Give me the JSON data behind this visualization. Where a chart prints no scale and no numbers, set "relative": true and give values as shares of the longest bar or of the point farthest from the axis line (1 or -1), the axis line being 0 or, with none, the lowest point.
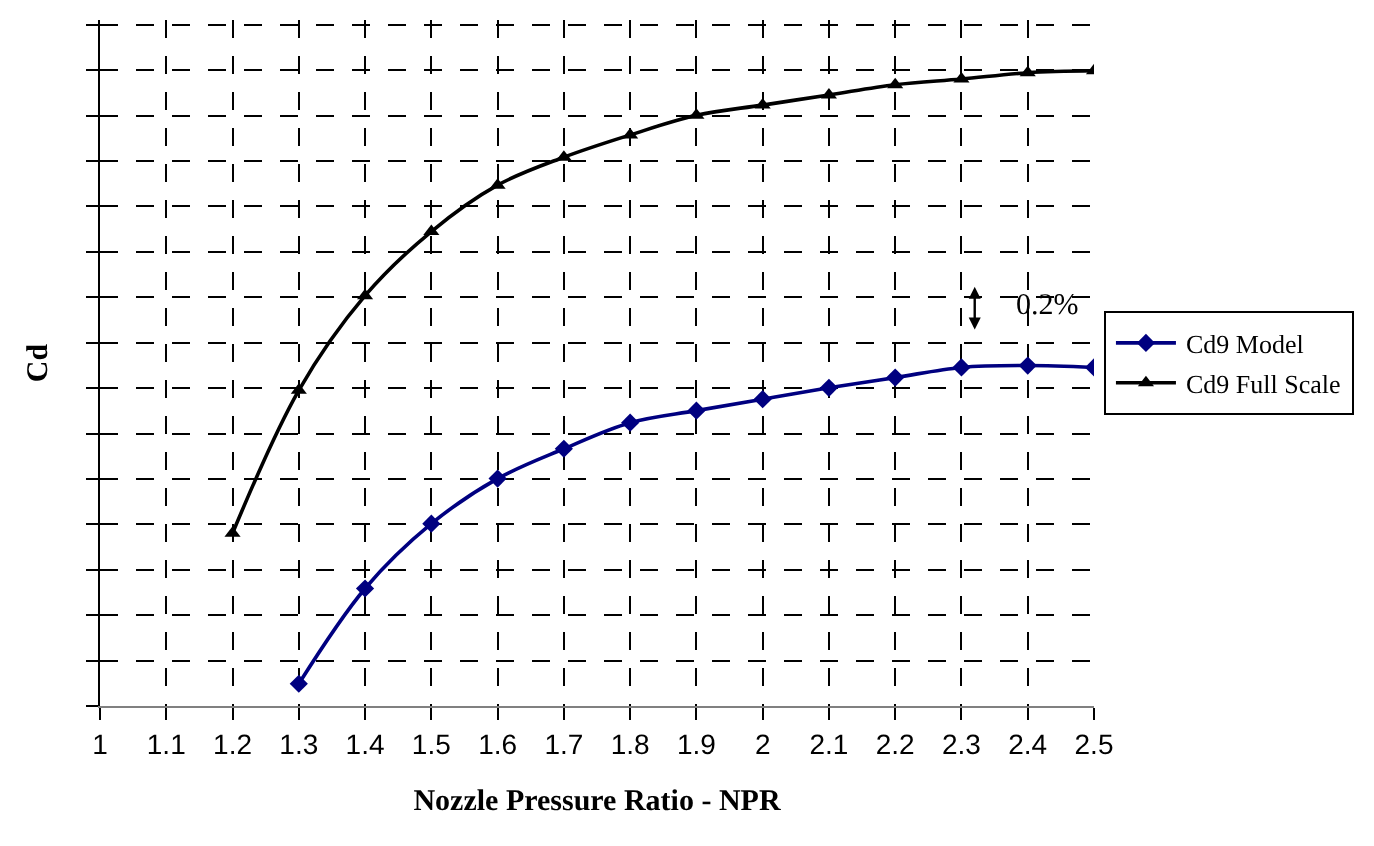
{
  "chart_data": {
    "type": "line",
    "relative": true,
    "xlabel": "Nozzle Pressure Ratio - NPR",
    "ylabel": "Cd",
    "xlim": [
      1,
      2.5
    ],
    "xticks": [
      1,
      1.1,
      1.2,
      1.3,
      1.4,
      1.5,
      1.6,
      1.7,
      1.8,
      1.9,
      2,
      2.1,
      2.2,
      2.3,
      2.4,
      2.5
    ],
    "grid": true,
    "legend": "right",
    "line_style": "solid",
    "annotations": [
      "0.2%"
    ],
    "series": [
      {
        "name": "Cd9 Model",
        "color": "#000080",
        "marker": "diamond",
        "x": [
          1.3,
          1.4,
          1.5,
          1.6,
          1.7,
          1.8,
          1.9,
          2.0,
          2.1,
          2.2,
          2.3,
          2.4,
          2.5
        ],
        "values": [
          0.035,
          0.185,
          0.287,
          0.358,
          0.405,
          0.446,
          0.465,
          0.483,
          0.501,
          0.517,
          0.533,
          0.536,
          0.533
        ]
      },
      {
        "name": "Cd9 Full Scale",
        "color": "#000000",
        "marker": "triangle",
        "x": [
          1.2,
          1.3,
          1.4,
          1.5,
          1.6,
          1.7,
          1.8,
          1.9,
          2.0,
          2.1,
          2.2,
          2.3,
          2.4,
          2.5
        ],
        "values": [
          0.272,
          0.497,
          0.646,
          0.747,
          0.82,
          0.864,
          0.899,
          0.93,
          0.946,
          0.962,
          0.978,
          0.987,
          0.997,
          1.0
        ]
      }
    ]
  }
}
